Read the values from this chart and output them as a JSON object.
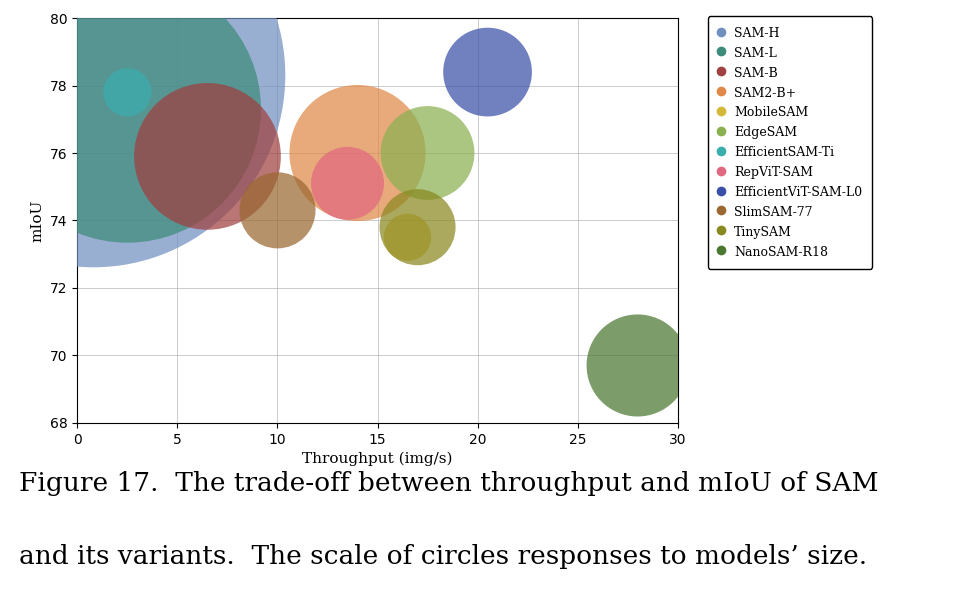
{
  "models": [
    {
      "name": "SAM-H",
      "throughput": 0.8,
      "mIoU": 78.3,
      "size": 636,
      "color": "#7090c0"
    },
    {
      "name": "SAM-L",
      "throughput": 2.5,
      "mIoU": 77.3,
      "size": 308,
      "color": "#3d8b7a"
    },
    {
      "name": "SAM-B",
      "throughput": 6.5,
      "mIoU": 75.9,
      "size": 93,
      "color": "#a04040"
    },
    {
      "name": "SAM2-B+",
      "throughput": 14.0,
      "mIoU": 76.0,
      "size": 80,
      "color": "#e08848"
    },
    {
      "name": "MobileSAM",
      "throughput": 16.5,
      "mIoU": 73.5,
      "size": 9.66,
      "color": "#d4b83a"
    },
    {
      "name": "EdgeSAM",
      "throughput": 17.5,
      "mIoU": 76.0,
      "size": 38,
      "color": "#8ab050"
    },
    {
      "name": "EfficientSAM-Ti",
      "throughput": 2.5,
      "mIoU": 77.8,
      "size": 10,
      "color": "#3aadad"
    },
    {
      "name": "RepViT-SAM",
      "throughput": 13.5,
      "mIoU": 75.1,
      "size": 23,
      "color": "#e06880"
    },
    {
      "name": "EfficientViT-SAM-L0",
      "throughput": 20.5,
      "mIoU": 78.4,
      "size": 34,
      "color": "#3a50a8"
    },
    {
      "name": "SlimSAM-77",
      "throughput": 10.0,
      "mIoU": 74.3,
      "size": 25,
      "color": "#9a6830"
    },
    {
      "name": "TinySAM",
      "throughput": 17.0,
      "mIoU": 73.8,
      "size": 25,
      "color": "#8a8820"
    },
    {
      "name": "NanoSAM-R18",
      "throughput": 28.0,
      "mIoU": 69.7,
      "size": 45,
      "color": "#4a7830"
    }
  ],
  "xlabel": "Throughput (img/s)",
  "ylabel": "mIoU",
  "xlim": [
    0,
    30
  ],
  "ylim": [
    68.0,
    80.0
  ],
  "yticks": [
    68.0,
    70.0,
    72.0,
    74.0,
    76.0,
    78.0,
    80.0
  ],
  "xticks": [
    0,
    5,
    10,
    15,
    20,
    25,
    30
  ],
  "caption_line1": "Figure 17.  The trade-off between throughput and mIoU of SAM",
  "caption_line2": "and its variants.  The scale of circles responses to models’ size.",
  "caption_fontsize": 19,
  "size_multiplier": 120
}
